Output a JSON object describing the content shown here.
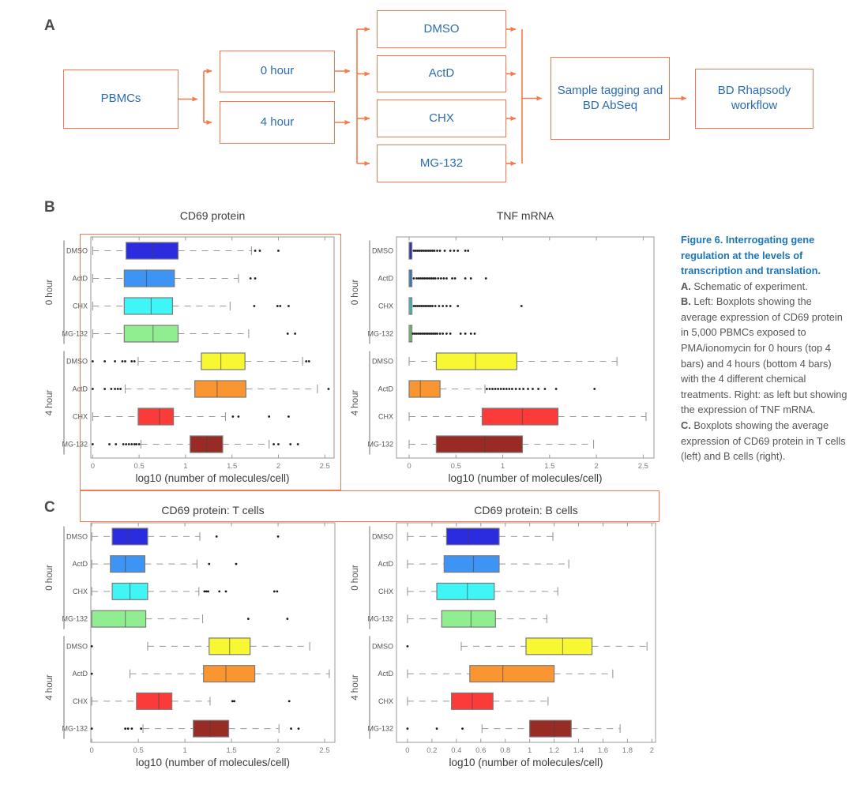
{
  "colors": {
    "accent_orange": "#F3794E",
    "flow_text_blue": "#2B6CB0",
    "caption_title_blue": "#1A75BB",
    "caption_body_gray": "#55565A",
    "panel_label_gray": "#4C4C4E",
    "plot_border": "#9A9A9A",
    "whisker_gray": "#999999",
    "box_border_gray": "#7A7A7A",
    "median_line": "#444444",
    "outlier_black": "#1A1A1A",
    "row_colors": [
      "#2B2BE0",
      "#3D94F5",
      "#3FF5F5",
      "#90EE90",
      "#F8F832",
      "#FA9632",
      "#FB3A3A",
      "#992B25"
    ]
  },
  "panel_a": {
    "label": "A",
    "boxes": {
      "pbmcs": "PBMCs",
      "hour0": "0 hour",
      "hour4": "4 hour",
      "dmso": "DMSO",
      "actd": "ActD",
      "chx": "CHX",
      "mg132": "MG-132",
      "tagging": "Sample tagging and BD AbSeq",
      "rhapsody": "BD Rhapsody workflow"
    }
  },
  "panel_b": {
    "label": "B"
  },
  "panel_c": {
    "label": "C"
  },
  "caption": {
    "title": "Figure 6. Interrogating gene regulation at the levels of transcription and translation.",
    "items": [
      {
        "prefix": "A.",
        "text": " Schematic of experiment."
      },
      {
        "prefix": "B.",
        "text": " Left: Boxplots showing the average expression of CD69 protein in 5,000 PBMCs exposed to PMA/ionomycin for 0 hours (top 4 bars) and 4 hours (bottom 4 bars) with the 4 different chemical treatments. Right: as left but showing the expression of TNF mRNA."
      },
      {
        "prefix": "C.",
        "text": " Boxplots showing the average expression of CD69 protein in T cells (left) and B cells (right)."
      }
    ]
  },
  "chart_data": [
    {
      "type": "boxplot",
      "title": "CD69 protein",
      "xlabel": "log10 (number of molecules/cell)",
      "xlim": [
        -0.02,
        2.6
      ],
      "xticks": [
        0,
        0.5,
        1,
        1.5,
        2,
        2.5
      ],
      "xtick_labels": [
        "0",
        "0.5",
        "1",
        "1.5",
        "2",
        "2.5"
      ],
      "group_labels": [
        "0 hour",
        "4 hour"
      ],
      "treatments": [
        "DMSO",
        "ActD",
        "CHX",
        "MG-132"
      ],
      "rows": [
        {
          "group": "0 hour",
          "label": "DMSO",
          "color": "#2B2BE0",
          "whisker_low": 0,
          "q1": 0.36,
          "median": 0.65,
          "q3": 0.92,
          "whisker_high": 1.71,
          "outliers": [
            1.75,
            1.8,
            2.0
          ]
        },
        {
          "group": "0 hour",
          "label": "ActD",
          "color": "#3D94F5",
          "whisker_low": 0,
          "q1": 0.34,
          "median": 0.58,
          "q3": 0.88,
          "whisker_high": 1.57,
          "outliers": [
            1.7,
            1.75
          ]
        },
        {
          "group": "0 hour",
          "label": "CHX",
          "color": "#3FF5F5",
          "whisker_low": 0,
          "q1": 0.34,
          "median": 0.63,
          "q3": 0.86,
          "whisker_high": 1.48,
          "outliers": [
            1.74,
            1.99,
            2.02,
            2.11
          ]
        },
        {
          "group": "0 hour",
          "label": "MG-132",
          "color": "#90EE90",
          "whisker_low": 0,
          "q1": 0.34,
          "median": 0.65,
          "q3": 0.92,
          "whisker_high": 1.68,
          "outliers": [
            2.1,
            2.18
          ]
        },
        {
          "group": "4 hour",
          "label": "DMSO",
          "color": "#F8F832",
          "whisker_low": 0.49,
          "q1": 1.17,
          "median": 1.38,
          "q3": 1.64,
          "whisker_high": 2.26,
          "outliers": [
            0,
            0.13,
            0.24,
            0.32,
            0.35,
            0.42,
            0.45,
            2.3,
            2.33
          ]
        },
        {
          "group": "4 hour",
          "label": "ActD",
          "color": "#FA9632",
          "whisker_low": 0.35,
          "q1": 1.1,
          "median": 1.34,
          "q3": 1.65,
          "whisker_high": 2.42,
          "outliers": [
            0,
            0.13,
            0.2,
            0.24,
            0.27,
            0.3,
            2.54
          ]
        },
        {
          "group": "4 hour",
          "label": "CHX",
          "color": "#FB3A3A",
          "whisker_low": 0,
          "q1": 0.49,
          "median": 0.72,
          "q3": 0.87,
          "whisker_high": 1.43,
          "outliers": [
            1.51,
            1.57,
            1.9,
            2.11
          ]
        },
        {
          "group": "4 hour",
          "label": "MG-132",
          "color": "#992B25",
          "whisker_low": 0.52,
          "q1": 1.05,
          "median": 1.23,
          "q3": 1.4,
          "whisker_high": 1.9,
          "outliers": [
            0,
            0.18,
            0.25,
            0.33,
            0.36,
            0.39,
            0.42,
            0.45,
            0.47,
            0.5,
            1.95,
            2.0,
            2.13,
            2.21
          ]
        }
      ]
    },
    {
      "type": "boxplot",
      "title": "TNF mRNA",
      "xlabel": "log10 (number of molecules/cell)",
      "xlim": [
        -0.135,
        2.615
      ],
      "xticks": [
        0,
        0.5,
        1,
        1.5,
        2,
        2.5
      ],
      "xtick_labels": [
        "0",
        "0.5",
        "1",
        "1.5",
        "2",
        "2.5"
      ],
      "group_labels": [
        "0 hour",
        "4 hour"
      ],
      "treatments": [
        "DMSO",
        "ActD",
        "CHX",
        "MG-132"
      ],
      "rows": [
        {
          "group": "0 hour",
          "label": "DMSO",
          "color": "#2B2BE0",
          "whisker_low": 0,
          "q1": 0,
          "median": 0.015,
          "q3": 0.03,
          "whisker_high": 0.03,
          "outliers": [
            0.05,
            0.07,
            0.09,
            0.11,
            0.13,
            0.15,
            0.17,
            0.19,
            0.21,
            0.23,
            0.25,
            0.27,
            0.3,
            0.33,
            0.38,
            0.44,
            0.48,
            0.52,
            0.6,
            0.63
          ]
        },
        {
          "group": "0 hour",
          "label": "ActD",
          "color": "#3D94F5",
          "whisker_low": 0,
          "q1": 0,
          "median": 0.015,
          "q3": 0.03,
          "whisker_high": 0.03,
          "outliers": [
            0.05,
            0.08,
            0.1,
            0.12,
            0.14,
            0.16,
            0.18,
            0.2,
            0.22,
            0.24,
            0.26,
            0.28,
            0.31,
            0.34,
            0.37,
            0.4,
            0.46,
            0.49,
            0.6,
            0.66,
            0.82
          ]
        },
        {
          "group": "0 hour",
          "label": "CHX",
          "color": "#3FF5F5",
          "whisker_low": 0,
          "q1": 0,
          "median": 0.015,
          "q3": 0.03,
          "whisker_high": 0.03,
          "outliers": [
            0.05,
            0.07,
            0.09,
            0.11,
            0.13,
            0.15,
            0.17,
            0.19,
            0.21,
            0.23,
            0.25,
            0.28,
            0.32,
            0.36,
            0.4,
            0.44,
            0.52,
            1.2
          ]
        },
        {
          "group": "0 hour",
          "label": "MG-132",
          "color": "#90EE90",
          "whisker_low": 0,
          "q1": 0,
          "median": 0.015,
          "q3": 0.03,
          "whisker_high": 0.03,
          "outliers": [
            0.04,
            0.06,
            0.08,
            0.1,
            0.12,
            0.14,
            0.16,
            0.18,
            0.2,
            0.22,
            0.24,
            0.26,
            0.28,
            0.3,
            0.33,
            0.36,
            0.4,
            0.44,
            0.55,
            0.6,
            0.66,
            0.7
          ]
        },
        {
          "group": "4 hour",
          "label": "DMSO",
          "color": "#F8F832",
          "whisker_low": 0,
          "q1": 0.29,
          "median": 0.71,
          "q3": 1.15,
          "whisker_high": 2.22,
          "outliers": []
        },
        {
          "group": "4 hour",
          "label": "ActD",
          "color": "#FA9632",
          "whisker_low": 0,
          "q1": 0,
          "median": 0.12,
          "q3": 0.33,
          "whisker_high": 0.81,
          "outliers": [
            0.83,
            0.86,
            0.89,
            0.92,
            0.95,
            0.98,
            1.01,
            1.04,
            1.07,
            1.1,
            1.14,
            1.18,
            1.22,
            1.27,
            1.32,
            1.38,
            1.45,
            1.57,
            1.98
          ]
        },
        {
          "group": "4 hour",
          "label": "CHX",
          "color": "#FB3A3A",
          "whisker_low": 0,
          "q1": 0.78,
          "median": 1.21,
          "q3": 1.59,
          "whisker_high": 2.53,
          "outliers": []
        },
        {
          "group": "4 hour",
          "label": "MG-132",
          "color": "#992B25",
          "whisker_low": 0,
          "q1": 0.29,
          "median": 0.81,
          "q3": 1.21,
          "whisker_high": 1.97,
          "outliers": []
        }
      ]
    },
    {
      "type": "boxplot",
      "title": "CD69 protein: T cells",
      "xlabel": "log10 (number of molecules/cell)",
      "xlim": [
        -0.01,
        2.61
      ],
      "xticks": [
        0,
        0.5,
        1,
        1.5,
        2,
        2.5
      ],
      "xtick_labels": [
        "0",
        "0.5",
        "1",
        "1.5",
        "2",
        "2.5"
      ],
      "group_labels": [
        "0 hour",
        "4 hour"
      ],
      "treatments": [
        "DMSO",
        "ActD",
        "CHX",
        "MG-132"
      ],
      "rows": [
        {
          "group": "0 hour",
          "label": "DMSO",
          "color": "#2B2BE0",
          "whisker_low": 0,
          "q1": 0.22,
          "median": 0.39,
          "q3": 0.6,
          "whisker_high": 1.16,
          "outliers": [
            1.34,
            2.0
          ]
        },
        {
          "group": "0 hour",
          "label": "ActD",
          "color": "#3D94F5",
          "whisker_low": 0,
          "q1": 0.2,
          "median": 0.36,
          "q3": 0.57,
          "whisker_high": 1.13,
          "outliers": [
            1.26,
            1.55
          ]
        },
        {
          "group": "0 hour",
          "label": "CHX",
          "color": "#3FF5F5",
          "whisker_low": 0,
          "q1": 0.22,
          "median": 0.41,
          "q3": 0.6,
          "whisker_high": 1.15,
          "outliers": [
            1.21,
            1.23,
            1.25,
            1.37,
            1.44,
            1.96,
            1.99
          ]
        },
        {
          "group": "0 hour",
          "label": "MG-132",
          "color": "#90EE90",
          "whisker_low": 0,
          "q1": 0,
          "median": 0.36,
          "q3": 0.58,
          "whisker_high": 1.19,
          "outliers": [
            1.68,
            2.1
          ]
        },
        {
          "group": "4 hour",
          "label": "DMSO",
          "color": "#F8F832",
          "whisker_low": 0.6,
          "q1": 1.26,
          "median": 1.48,
          "q3": 1.7,
          "whisker_high": 2.34,
          "outliers": [
            0
          ]
        },
        {
          "group": "4 hour",
          "label": "ActD",
          "color": "#FA9632",
          "whisker_low": 0.41,
          "q1": 1.2,
          "median": 1.44,
          "q3": 1.75,
          "whisker_high": 2.55,
          "outliers": [
            0
          ]
        },
        {
          "group": "4 hour",
          "label": "CHX",
          "color": "#FB3A3A",
          "whisker_low": 0,
          "q1": 0.48,
          "median": 0.72,
          "q3": 0.86,
          "whisker_high": 1.27,
          "outliers": [
            1.51,
            1.53,
            2.12
          ]
        },
        {
          "group": "4 hour",
          "label": "MG-132",
          "color": "#992B25",
          "whisker_low": 0.55,
          "q1": 1.09,
          "median": 1.27,
          "q3": 1.47,
          "whisker_high": 2.01,
          "outliers": [
            0,
            0.36,
            0.39,
            0.43,
            0.53,
            2.14,
            2.22
          ]
        }
      ]
    },
    {
      "type": "boxplot",
      "title": "CD69 protein: B cells",
      "xlabel": "log10 (number of molecules/cell)",
      "xlim": [
        -0.09,
        2.03
      ],
      "xticks": [
        0,
        0.2,
        0.4,
        0.6,
        0.8,
        1,
        1.2,
        1.4,
        1.6,
        1.8,
        2
      ],
      "xtick_labels": [
        "0",
        "0.2",
        "0.4",
        "0.6",
        "0.8",
        "1",
        "1.2",
        "1.4",
        "1.6",
        "1.8",
        "2"
      ],
      "group_labels": [
        "0 hour",
        "4 hour"
      ],
      "treatments": [
        "DMSO",
        "ActD",
        "CHX",
        "MG-132"
      ],
      "rows": [
        {
          "group": "0 hour",
          "label": "DMSO",
          "color": "#2B2BE0",
          "whisker_low": 0,
          "q1": 0.32,
          "median": 0.5,
          "q3": 0.75,
          "whisker_high": 1.19,
          "outliers": []
        },
        {
          "group": "0 hour",
          "label": "ActD",
          "color": "#3D94F5",
          "whisker_low": 0,
          "q1": 0.3,
          "median": 0.54,
          "q3": 0.75,
          "whisker_high": 1.32,
          "outliers": []
        },
        {
          "group": "0 hour",
          "label": "CHX",
          "color": "#3FF5F5",
          "whisker_low": 0,
          "q1": 0.24,
          "median": 0.49,
          "q3": 0.71,
          "whisker_high": 1.23,
          "outliers": []
        },
        {
          "group": "0 hour",
          "label": "MG-132",
          "color": "#90EE90",
          "whisker_low": 0,
          "q1": 0.28,
          "median": 0.52,
          "q3": 0.72,
          "whisker_high": 1.14,
          "outliers": []
        },
        {
          "group": "4 hour",
          "label": "DMSO",
          "color": "#F8F832",
          "whisker_low": 0.44,
          "q1": 0.97,
          "median": 1.27,
          "q3": 1.51,
          "whisker_high": 1.96,
          "outliers": [
            0
          ]
        },
        {
          "group": "4 hour",
          "label": "ActD",
          "color": "#FA9632",
          "whisker_low": 0,
          "q1": 0.51,
          "median": 0.78,
          "q3": 1.2,
          "whisker_high": 1.68,
          "outliers": []
        },
        {
          "group": "4 hour",
          "label": "CHX",
          "color": "#FB3A3A",
          "whisker_low": 0,
          "q1": 0.36,
          "median": 0.53,
          "q3": 0.7,
          "whisker_high": 1.15,
          "outliers": []
        },
        {
          "group": "4 hour",
          "label": "MG-132",
          "color": "#992B25",
          "whisker_low": 0.61,
          "q1": 1.0,
          "median": 1.2,
          "q3": 1.34,
          "whisker_high": 1.74,
          "outliers": [
            0,
            0.24,
            0.45
          ]
        }
      ]
    }
  ]
}
